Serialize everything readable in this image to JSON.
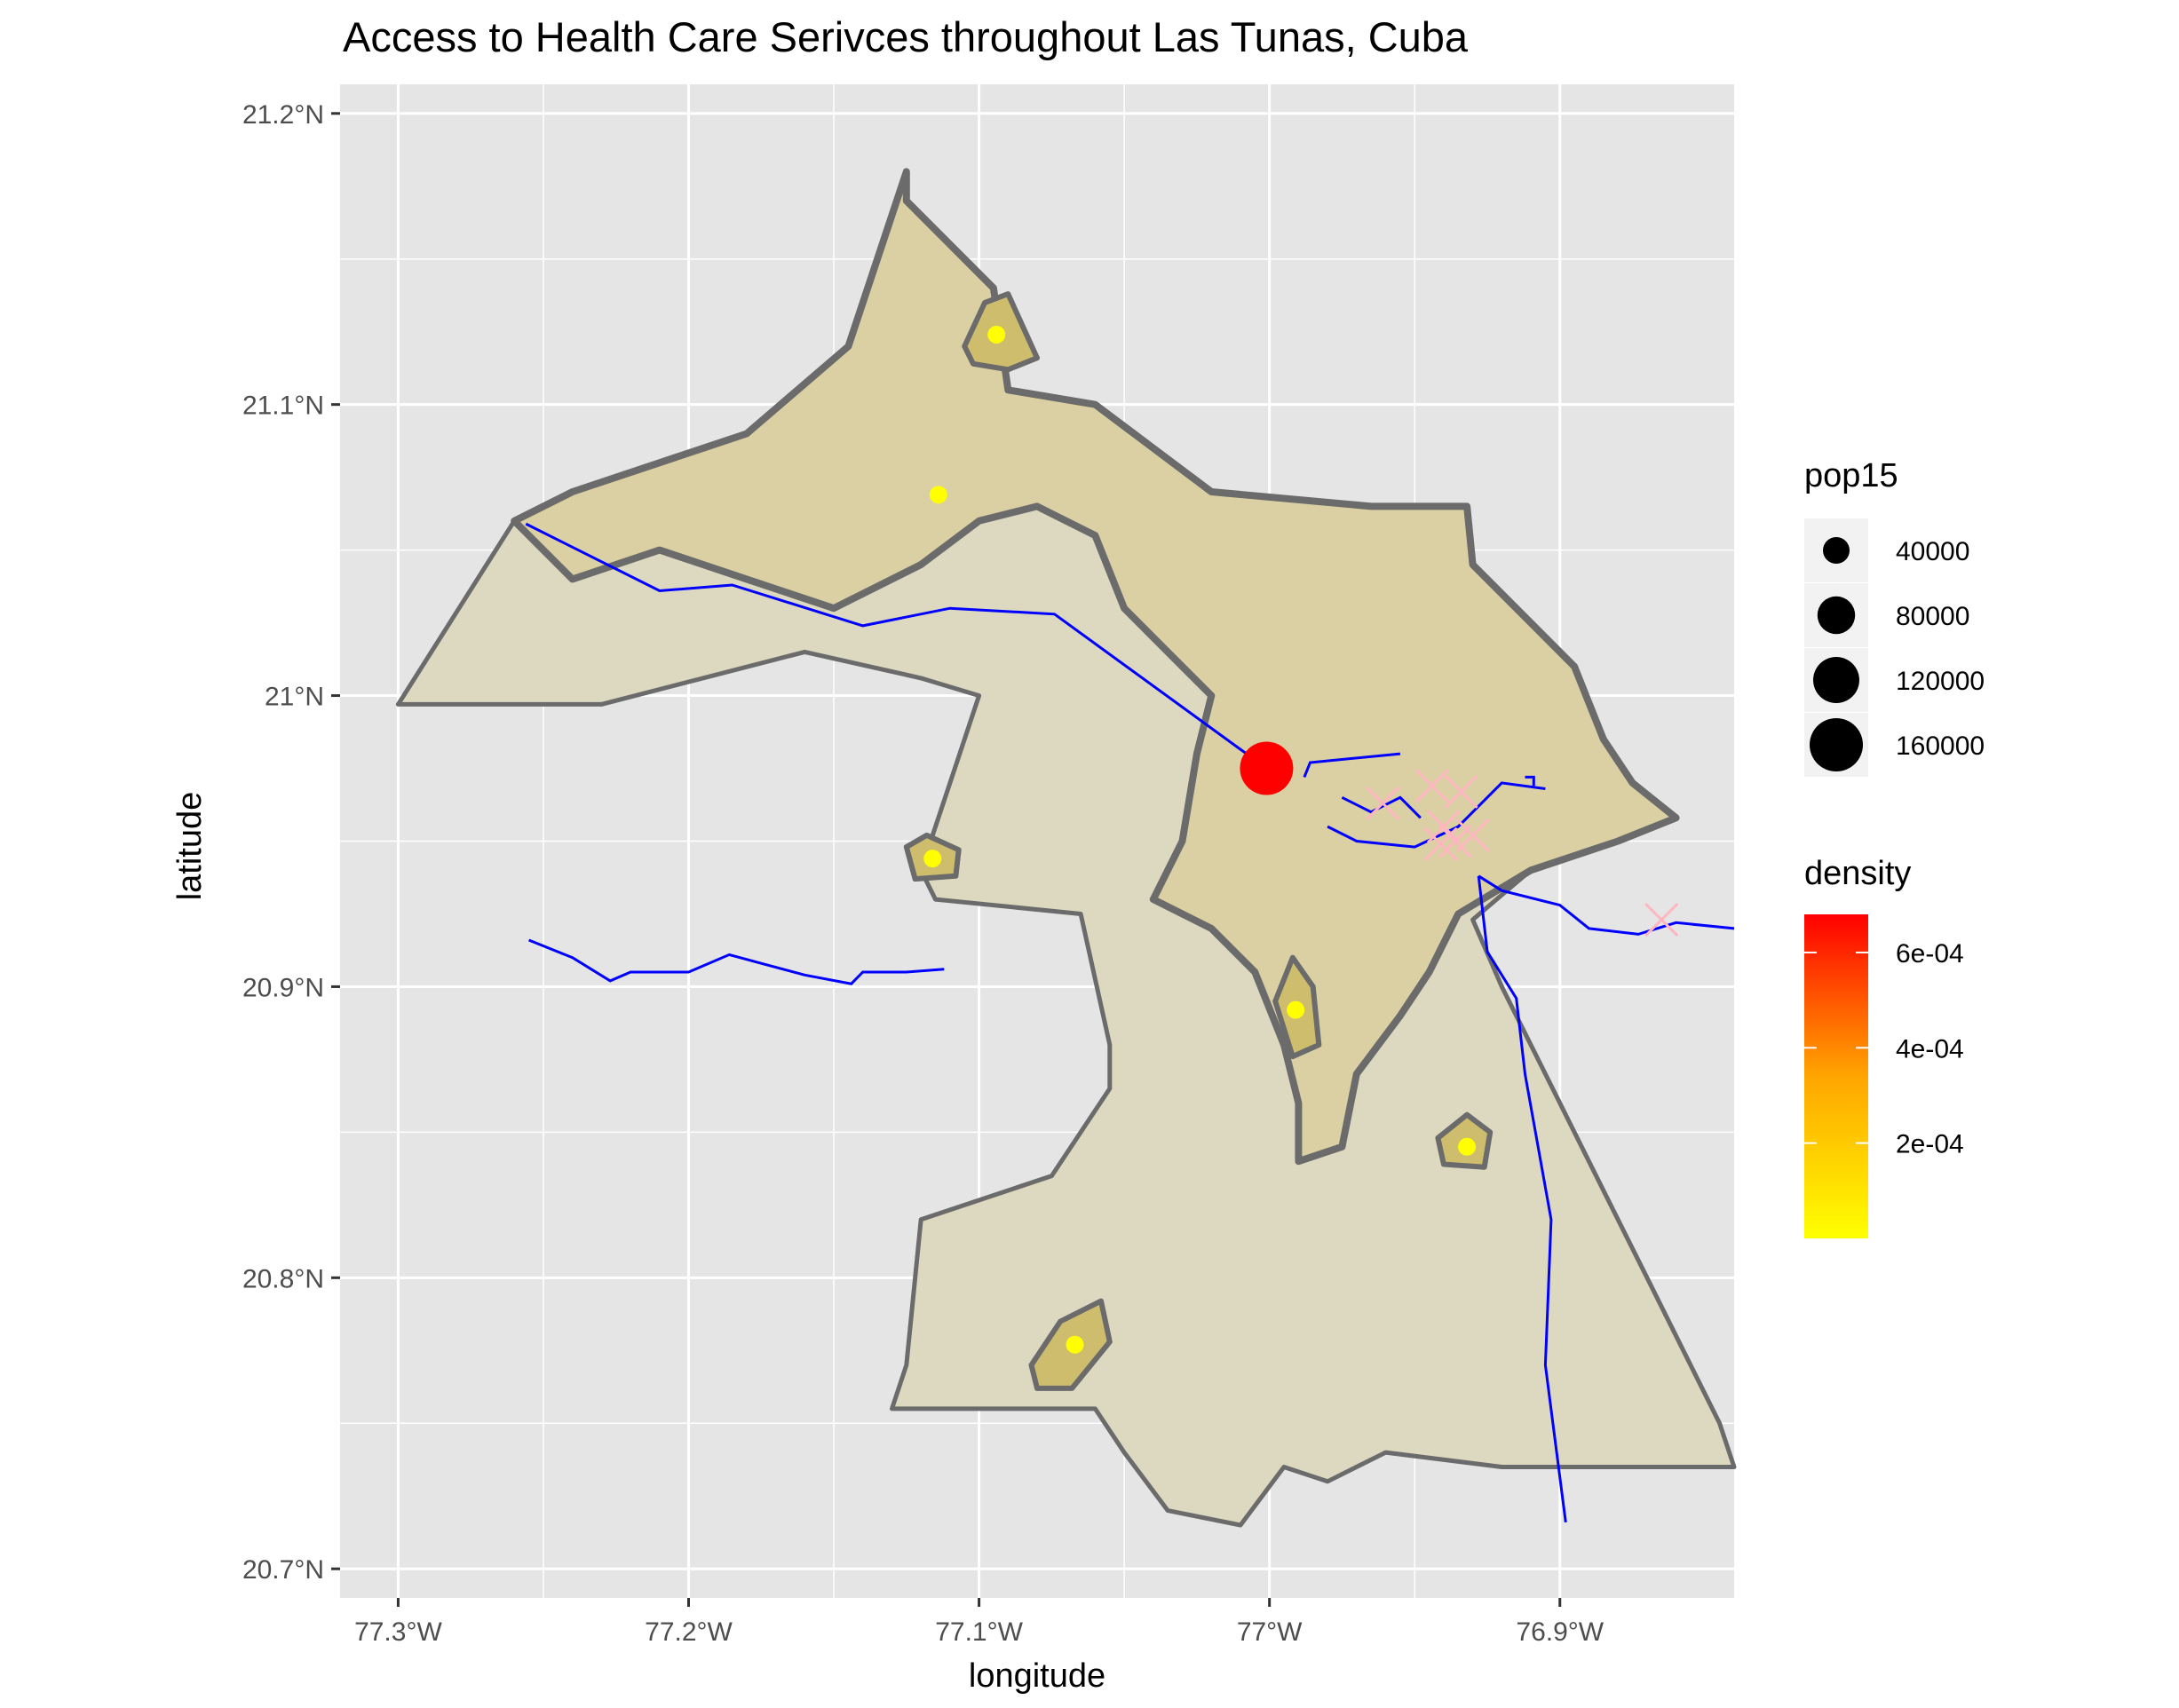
{
  "chart_data": {
    "type": "map",
    "title": "Access to Health Care Serivces throughout Las Tunas, Cuba",
    "xlabel": "longitude",
    "ylabel": "latitude",
    "xlim": [
      -77.32,
      -76.84
    ],
    "ylim": [
      20.69,
      21.21
    ],
    "grid": true,
    "x_ticks": [
      {
        "value": -77.3,
        "label": "77.3°W"
      },
      {
        "value": -77.2,
        "label": "77.2°W"
      },
      {
        "value": -77.1,
        "label": "77.1°W"
      },
      {
        "value": -77.0,
        "label": "77°W"
      },
      {
        "value": -76.9,
        "label": "76.9°W"
      }
    ],
    "y_ticks": [
      {
        "value": 20.7,
        "label": "20.7°N"
      },
      {
        "value": 20.8,
        "label": "20.8°N"
      },
      {
        "value": 20.9,
        "label": "20.9°N"
      },
      {
        "value": 21.0,
        "label": "21°N"
      },
      {
        "value": 21.1,
        "label": "21.1°N"
      },
      {
        "value": 21.2,
        "label": "21.2°N"
      }
    ],
    "colors": {
      "panel": "#e5e5e5",
      "grid": "#ffffff",
      "region_outer": "#ddd8c0",
      "region_inner": "#d9cfa0",
      "hotspot": "#cfbd6e",
      "boundary": "#6b6b6b",
      "roads": "#0000ff",
      "health_facility": "#ffffff00",
      "settlement": "#ffff00",
      "city": "#ff0000",
      "cross": "#ffb6c1"
    },
    "city_point": {
      "lon": -77.001,
      "lat": 20.975,
      "pop15": 160000
    },
    "settlement_points": [
      {
        "lon": -77.094,
        "lat": 21.124
      },
      {
        "lon": -77.114,
        "lat": 21.069
      },
      {
        "lon": -77.116,
        "lat": 20.944
      },
      {
        "lon": -76.991,
        "lat": 20.892
      },
      {
        "lon": -76.932,
        "lat": 20.845
      },
      {
        "lon": -77.067,
        "lat": 20.777
      }
    ],
    "facility_crosses": [
      {
        "lon": -76.961,
        "lat": 20.963
      },
      {
        "lon": -76.944,
        "lat": 20.969
      },
      {
        "lon": -76.934,
        "lat": 20.967
      },
      {
        "lon": -76.94,
        "lat": 20.955
      },
      {
        "lon": -76.936,
        "lat": 20.95
      },
      {
        "lon": -76.93,
        "lat": 20.952
      },
      {
        "lon": -76.941,
        "lat": 20.949
      },
      {
        "lon": -76.865,
        "lat": 20.923
      }
    ],
    "legend_pop15": {
      "title": "pop15",
      "placement": "right",
      "entries": [
        {
          "label": "40000",
          "value": 40000
        },
        {
          "label": "80000",
          "value": 80000
        },
        {
          "label": "120000",
          "value": 120000
        },
        {
          "label": "160000",
          "value": 160000
        }
      ]
    },
    "legend_density": {
      "title": "density",
      "placement": "right",
      "range": [
        0,
        0.00068
      ],
      "low_color": "#ffff00",
      "high_color": "#ff0000",
      "breaks": [
        {
          "label": "6e-04",
          "value": 0.0006
        },
        {
          "label": "4e-04",
          "value": 0.0004
        },
        {
          "label": "2e-04",
          "value": 0.0002
        }
      ]
    },
    "region_outline": [
      [
        -77.3,
        20.997
      ],
      [
        -77.23,
        20.997
      ],
      [
        -77.16,
        21.015
      ],
      [
        -77.12,
        21.006
      ],
      [
        -77.1,
        21.0
      ],
      [
        -77.12,
        20.94
      ],
      [
        -77.115,
        20.93
      ],
      [
        -77.065,
        20.925
      ],
      [
        -77.055,
        20.88
      ],
      [
        -77.055,
        20.865
      ],
      [
        -77.075,
        20.835
      ],
      [
        -77.12,
        20.82
      ],
      [
        -77.125,
        20.77
      ],
      [
        -77.13,
        20.755
      ],
      [
        -77.06,
        20.755
      ],
      [
        -77.05,
        20.74
      ],
      [
        -77.035,
        20.72
      ],
      [
        -77.01,
        20.715
      ],
      [
        -76.995,
        20.735
      ],
      [
        -76.98,
        20.73
      ],
      [
        -76.96,
        20.74
      ],
      [
        -76.92,
        20.735
      ],
      [
        -76.84,
        20.735
      ],
      [
        -76.845,
        20.75
      ],
      [
        -76.86,
        20.78
      ],
      [
        -76.87,
        20.8
      ],
      [
        -76.885,
        20.83
      ],
      [
        -76.905,
        20.87
      ],
      [
        -76.92,
        20.9
      ],
      [
        -76.93,
        20.923
      ],
      [
        -76.91,
        20.94
      ],
      [
        -76.88,
        20.95
      ],
      [
        -76.86,
        20.958
      ],
      [
        -76.875,
        20.97
      ],
      [
        -76.885,
        20.985
      ],
      [
        -76.895,
        21.01
      ],
      [
        -76.91,
        21.025
      ],
      [
        -76.93,
        21.045
      ],
      [
        -76.932,
        21.065
      ],
      [
        -76.965,
        21.065
      ],
      [
        -77.02,
        21.07
      ],
      [
        -77.06,
        21.1
      ],
      [
        -77.09,
        21.105
      ],
      [
        -77.095,
        21.14
      ],
      [
        -77.125,
        21.17
      ],
      [
        -77.125,
        21.18
      ],
      [
        -77.145,
        21.12
      ],
      [
        -77.18,
        21.09
      ],
      [
        -77.24,
        21.07
      ],
      [
        -77.26,
        21.06
      ],
      [
        -77.3,
        20.997
      ]
    ],
    "inner_region": [
      [
        -77.26,
        21.06
      ],
      [
        -77.24,
        21.04
      ],
      [
        -77.21,
        21.05
      ],
      [
        -77.18,
        21.04
      ],
      [
        -77.15,
        21.03
      ],
      [
        -77.12,
        21.045
      ],
      [
        -77.1,
        21.06
      ],
      [
        -77.08,
        21.065
      ],
      [
        -77.06,
        21.055
      ],
      [
        -77.05,
        21.03
      ],
      [
        -77.03,
        21.01
      ],
      [
        -77.02,
        21.0
      ],
      [
        -77.025,
        20.98
      ],
      [
        -77.03,
        20.95
      ],
      [
        -77.04,
        20.93
      ],
      [
        -77.02,
        20.92
      ],
      [
        -77.005,
        20.905
      ],
      [
        -76.995,
        20.88
      ],
      [
        -76.99,
        20.86
      ],
      [
        -76.99,
        20.84
      ],
      [
        -76.975,
        20.845
      ],
      [
        -76.97,
        20.87
      ],
      [
        -76.955,
        20.89
      ],
      [
        -76.945,
        20.905
      ],
      [
        -76.94,
        20.915
      ],
      [
        -76.935,
        20.925
      ],
      [
        -76.91,
        20.94
      ],
      [
        -76.88,
        20.95
      ],
      [
        -76.86,
        20.958
      ],
      [
        -76.875,
        20.97
      ],
      [
        -76.885,
        20.985
      ],
      [
        -76.895,
        21.01
      ],
      [
        -76.91,
        21.025
      ],
      [
        -76.93,
        21.045
      ],
      [
        -76.932,
        21.065
      ],
      [
        -76.965,
        21.065
      ],
      [
        -77.02,
        21.07
      ],
      [
        -77.06,
        21.1
      ],
      [
        -77.09,
        21.105
      ],
      [
        -77.095,
        21.14
      ],
      [
        -77.125,
        21.17
      ],
      [
        -77.125,
        21.18
      ],
      [
        -77.145,
        21.12
      ],
      [
        -77.18,
        21.09
      ],
      [
        -77.24,
        21.07
      ],
      [
        -77.26,
        21.06
      ]
    ],
    "hotspots": [
      [
        [
          -77.105,
          21.12
        ],
        [
          -77.098,
          21.135
        ],
        [
          -77.09,
          21.138
        ],
        [
          -77.085,
          21.127
        ],
        [
          -77.08,
          21.116
        ],
        [
          -77.09,
          21.112
        ],
        [
          -77.102,
          21.114
        ]
      ],
      [
        [
          -77.125,
          20.948
        ],
        [
          -77.118,
          20.952
        ],
        [
          -77.107,
          20.947
        ],
        [
          -77.108,
          20.938
        ],
        [
          -77.122,
          20.937
        ]
      ],
      [
        [
          -76.998,
          20.895
        ],
        [
          -76.992,
          20.91
        ],
        [
          -76.985,
          20.9
        ],
        [
          -76.983,
          20.88
        ],
        [
          -76.992,
          20.876
        ]
      ],
      [
        [
          -76.942,
          20.848
        ],
        [
          -76.932,
          20.856
        ],
        [
          -76.924,
          20.85
        ],
        [
          -76.926,
          20.838
        ],
        [
          -76.94,
          20.839
        ]
      ],
      [
        [
          -77.082,
          20.77
        ],
        [
          -77.072,
          20.785
        ],
        [
          -77.058,
          20.792
        ],
        [
          -77.055,
          20.778
        ],
        [
          -77.068,
          20.762
        ],
        [
          -77.08,
          20.762
        ]
      ]
    ],
    "roads": [
      [
        [
          -77.256,
          21.059
        ],
        [
          -77.21,
          21.036
        ],
        [
          -77.185,
          21.038
        ],
        [
          -77.14,
          21.024
        ],
        [
          -77.11,
          21.03
        ],
        [
          -77.074,
          21.028
        ],
        [
          -77.001,
          20.975
        ]
      ],
      [
        [
          -77.255,
          20.916
        ],
        [
          -77.24,
          20.91
        ],
        [
          -77.227,
          20.902
        ],
        [
          -77.22,
          20.905
        ],
        [
          -77.2,
          20.905
        ],
        [
          -77.186,
          20.911
        ],
        [
          -77.175,
          20.908
        ],
        [
          -77.16,
          20.904
        ],
        [
          -77.144,
          20.901
        ],
        [
          -77.14,
          20.905
        ],
        [
          -77.125,
          20.905
        ],
        [
          -77.112,
          20.906
        ]
      ],
      [
        [
          -76.988,
          20.972
        ],
        [
          -76.986,
          20.977
        ],
        [
          -76.955,
          20.98
        ]
      ],
      [
        [
          -76.98,
          20.955
        ],
        [
          -76.97,
          20.95
        ],
        [
          -76.95,
          20.948
        ],
        [
          -76.935,
          20.955
        ],
        [
          -76.92,
          20.97
        ],
        [
          -76.905,
          20.968
        ]
      ],
      [
        [
          -76.975,
          20.965
        ],
        [
          -76.965,
          20.96
        ],
        [
          -76.955,
          20.965
        ],
        [
          -76.948,
          20.958
        ]
      ],
      [
        [
          -76.928,
          20.938
        ],
        [
          -76.925,
          20.912
        ],
        [
          -76.915,
          20.896
        ],
        [
          -76.912,
          20.87
        ],
        [
          -76.903,
          20.82
        ],
        [
          -76.905,
          20.77
        ],
        [
          -76.898,
          20.716
        ]
      ],
      [
        [
          -76.928,
          20.938
        ],
        [
          -76.92,
          20.933
        ],
        [
          -76.9,
          20.928
        ],
        [
          -76.89,
          20.92
        ],
        [
          -76.873,
          20.918
        ],
        [
          -76.86,
          20.922
        ],
        [
          -76.84,
          20.92
        ]
      ],
      [
        [
          -76.912,
          20.972
        ],
        [
          -76.909,
          20.972
        ],
        [
          -76.909,
          20.969
        ]
      ]
    ]
  }
}
